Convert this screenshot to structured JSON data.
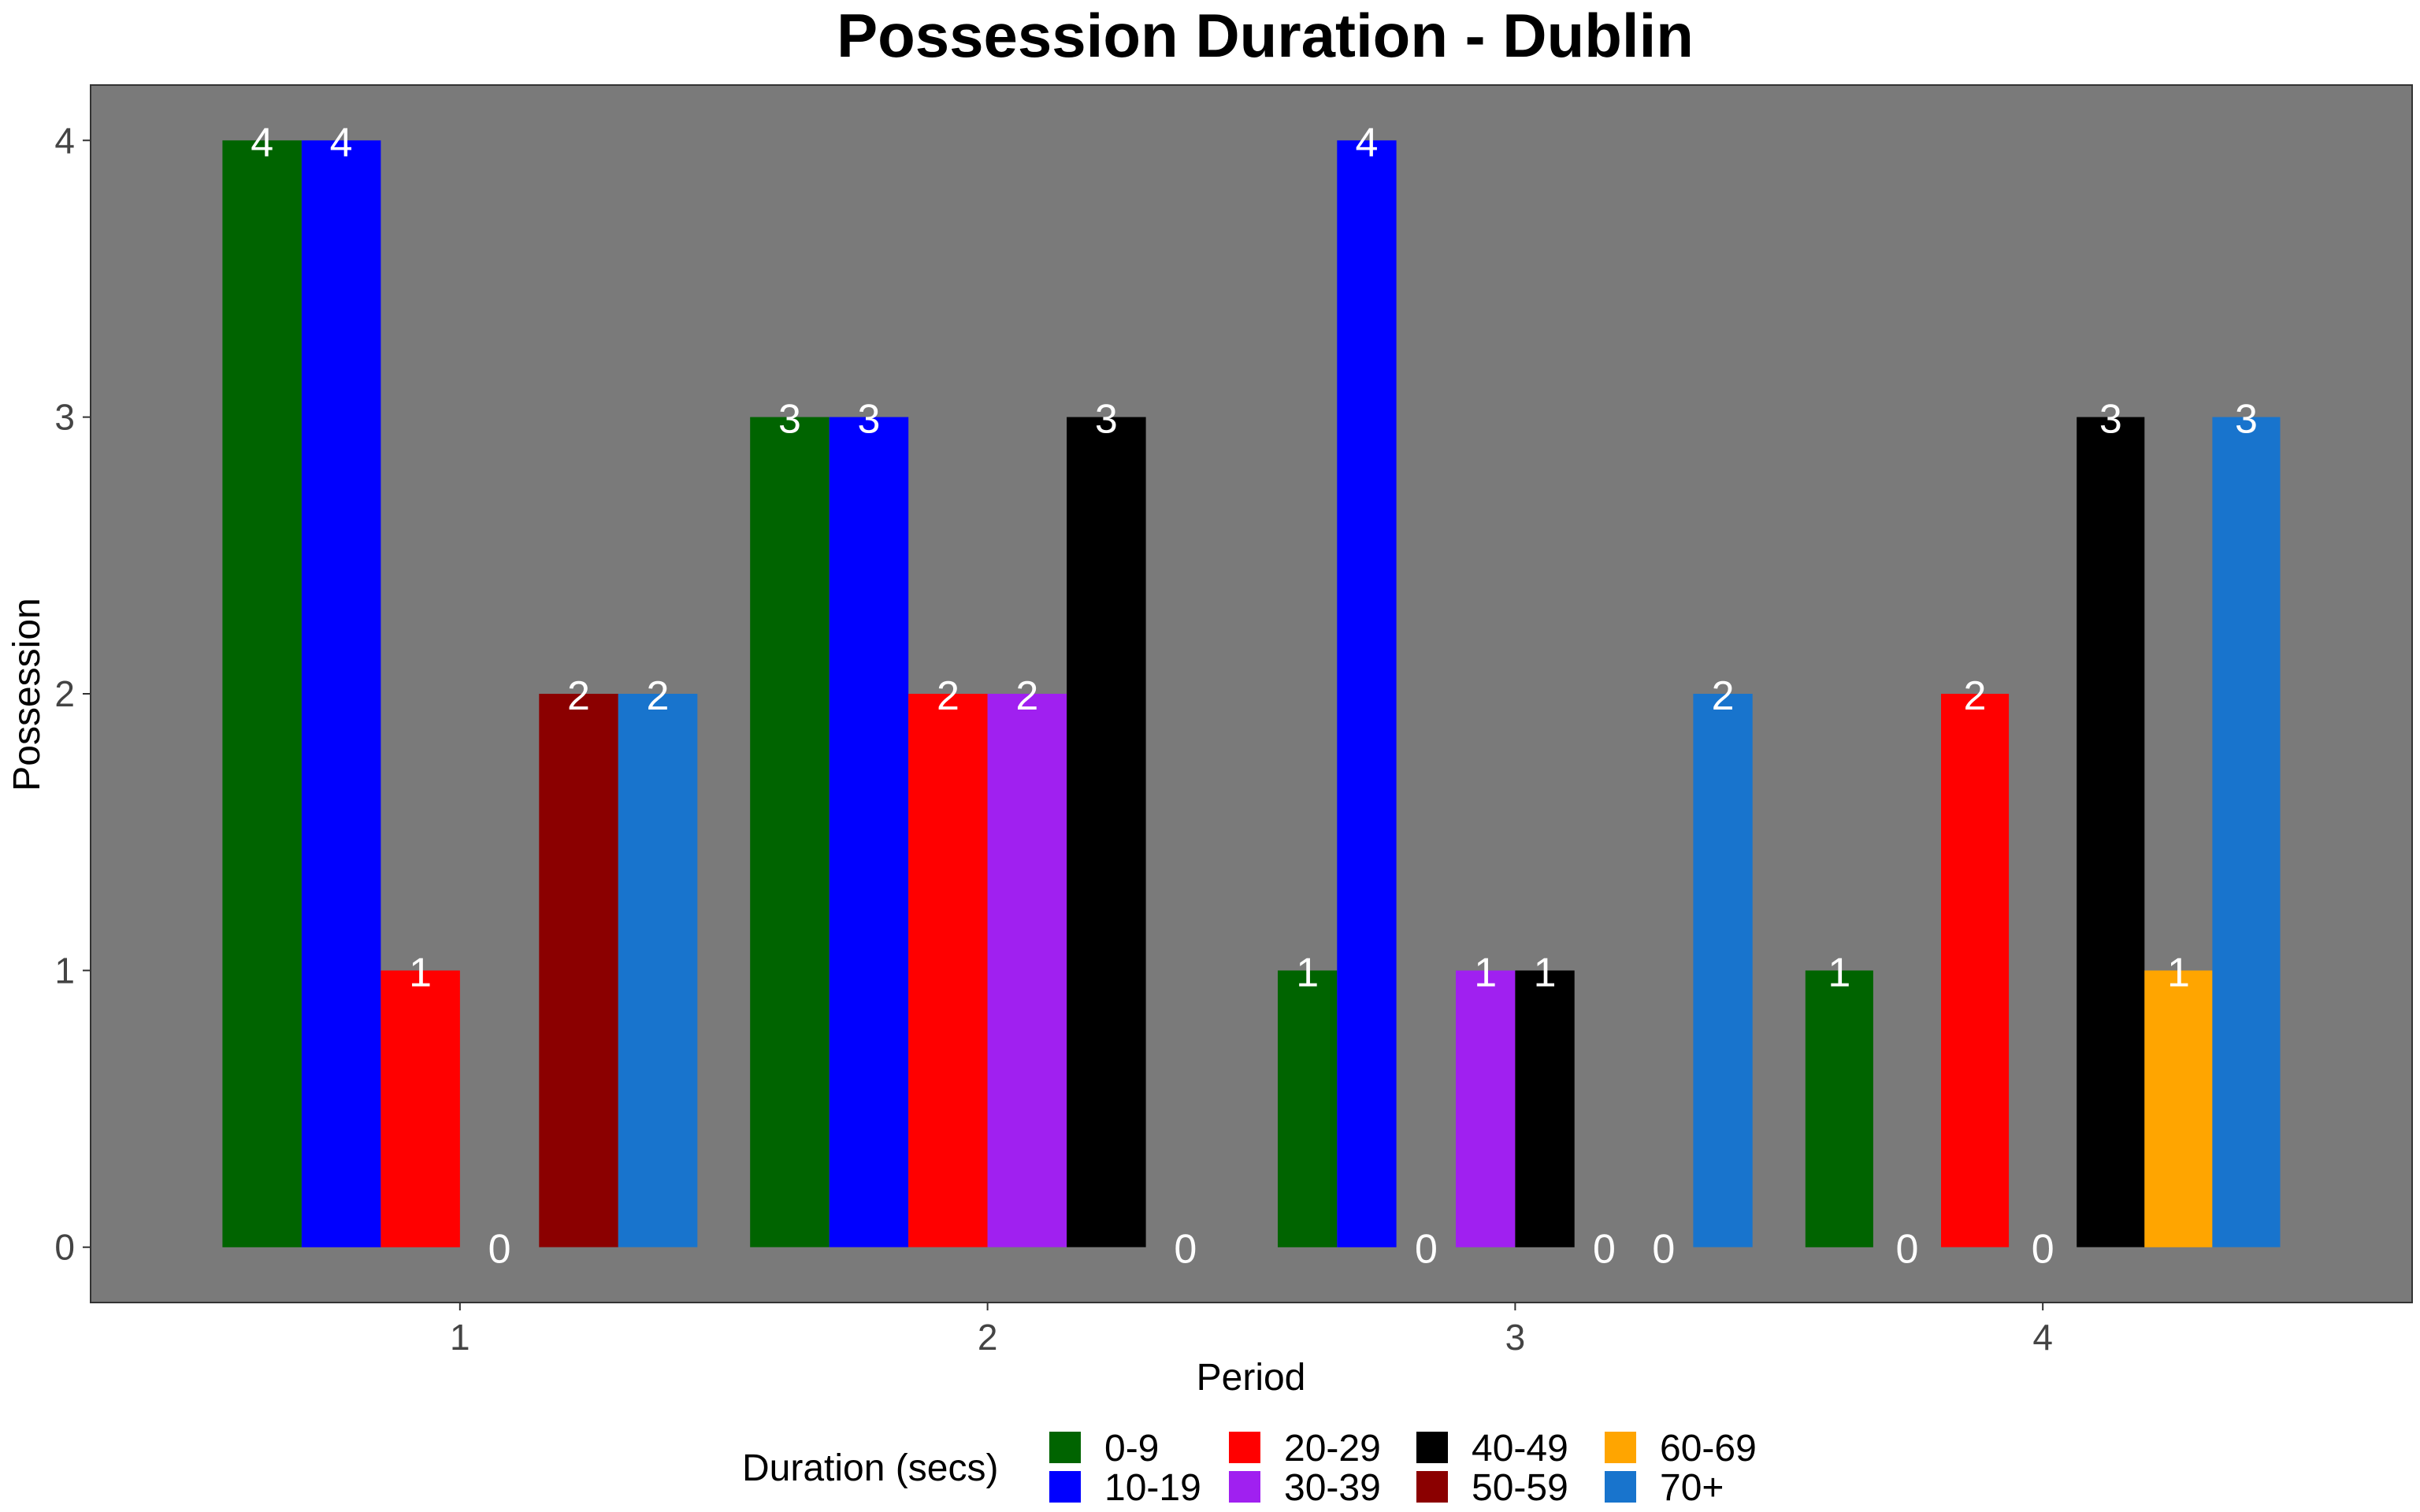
{
  "chart_data": {
    "type": "bar",
    "title": "Possession Duration - Dublin",
    "xlabel": "Period",
    "ylabel": "Possession",
    "ylim": [
      -0.2,
      4.2
    ],
    "yticks": [
      0,
      1,
      2,
      3,
      4
    ],
    "categories": [
      "1",
      "2",
      "3",
      "4"
    ],
    "legend": {
      "title": "Duration (secs)",
      "position": "bottom"
    },
    "panel_background": "#7a7a7a",
    "grid": false,
    "periods": [
      {
        "category": "1",
        "bars": [
          {
            "group": "0-9",
            "value": 4
          },
          {
            "group": "10-19",
            "value": 4
          },
          {
            "group": "20-29",
            "value": 1
          },
          {
            "group": "30-39",
            "value": 0
          },
          {
            "group": "50-59",
            "value": 2
          },
          {
            "group": "70+",
            "value": 2
          }
        ]
      },
      {
        "category": "2",
        "bars": [
          {
            "group": "0-9",
            "value": 3
          },
          {
            "group": "10-19",
            "value": 3
          },
          {
            "group": "20-29",
            "value": 2
          },
          {
            "group": "30-39",
            "value": 2
          },
          {
            "group": "40-49",
            "value": 3
          },
          {
            "group": "50-59",
            "value": 0
          }
        ]
      },
      {
        "category": "3",
        "bars": [
          {
            "group": "0-9",
            "value": 1
          },
          {
            "group": "10-19",
            "value": 4
          },
          {
            "group": "20-29",
            "value": 0
          },
          {
            "group": "30-39",
            "value": 1
          },
          {
            "group": "40-49",
            "value": 1
          },
          {
            "group": "50-59",
            "value": 0
          },
          {
            "group": "60-69",
            "value": 0
          },
          {
            "group": "70+",
            "value": 2
          }
        ]
      },
      {
        "category": "4",
        "bars": [
          {
            "group": "0-9",
            "value": 1
          },
          {
            "group": "10-19",
            "value": 0
          },
          {
            "group": "20-29",
            "value": 2
          },
          {
            "group": "30-39",
            "value": 0
          },
          {
            "group": "40-49",
            "value": 3
          },
          {
            "group": "60-69",
            "value": 1
          },
          {
            "group": "70+",
            "value": 3
          }
        ]
      }
    ],
    "groups": [
      {
        "name": "0-9",
        "color": "#006400"
      },
      {
        "name": "10-19",
        "color": "#0000ff"
      },
      {
        "name": "20-29",
        "color": "#ff0000"
      },
      {
        "name": "30-39",
        "color": "#a020f0"
      },
      {
        "name": "40-49",
        "color": "#000000"
      },
      {
        "name": "50-59",
        "color": "#8b0000"
      },
      {
        "name": "60-69",
        "color": "#ffa500"
      },
      {
        "name": "70+",
        "color": "#1874cd"
      }
    ]
  }
}
